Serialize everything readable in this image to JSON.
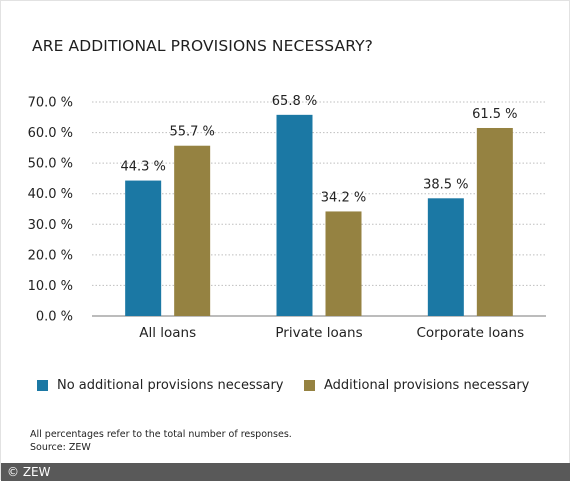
{
  "chart_data": {
    "type": "bar",
    "title": "ARE ADDITIONAL PROVISIONS NECESSARY?",
    "categories": [
      "All loans",
      "Private loans",
      "Corporate loans"
    ],
    "series": [
      {
        "name": "No additional provisions necessary",
        "values": [
          44.3,
          65.8,
          38.5
        ],
        "color": "#1b78a4"
      },
      {
        "name": "Additional provisions necessary",
        "values": [
          55.7,
          34.2,
          61.5
        ],
        "color": "#958241"
      }
    ],
    "value_labels": [
      [
        "44.3 %",
        "65.8 %",
        "38.5 %"
      ],
      [
        "55.7 %",
        "34.2 %",
        "61.5 %"
      ]
    ],
    "yticks": [
      0,
      10,
      20,
      30,
      40,
      50,
      60,
      70
    ],
    "ytick_labels": [
      "0.0 %",
      "10.0 %",
      "20.0 %",
      "30.0 %",
      "40.0 %",
      "50.0 %",
      "60.0 %",
      "70.0 %"
    ],
    "ylim": [
      0,
      70
    ],
    "grid": true,
    "legend_position": "bottom"
  },
  "footnote": {
    "line1": "All percentages refer to the total number of responses.",
    "line2": "Source: ZEW"
  },
  "copyright": "© ZEW",
  "colors": {
    "grid": "#bfbfbf",
    "axis": "#7a7a7a",
    "footer_bar": "#595959"
  }
}
